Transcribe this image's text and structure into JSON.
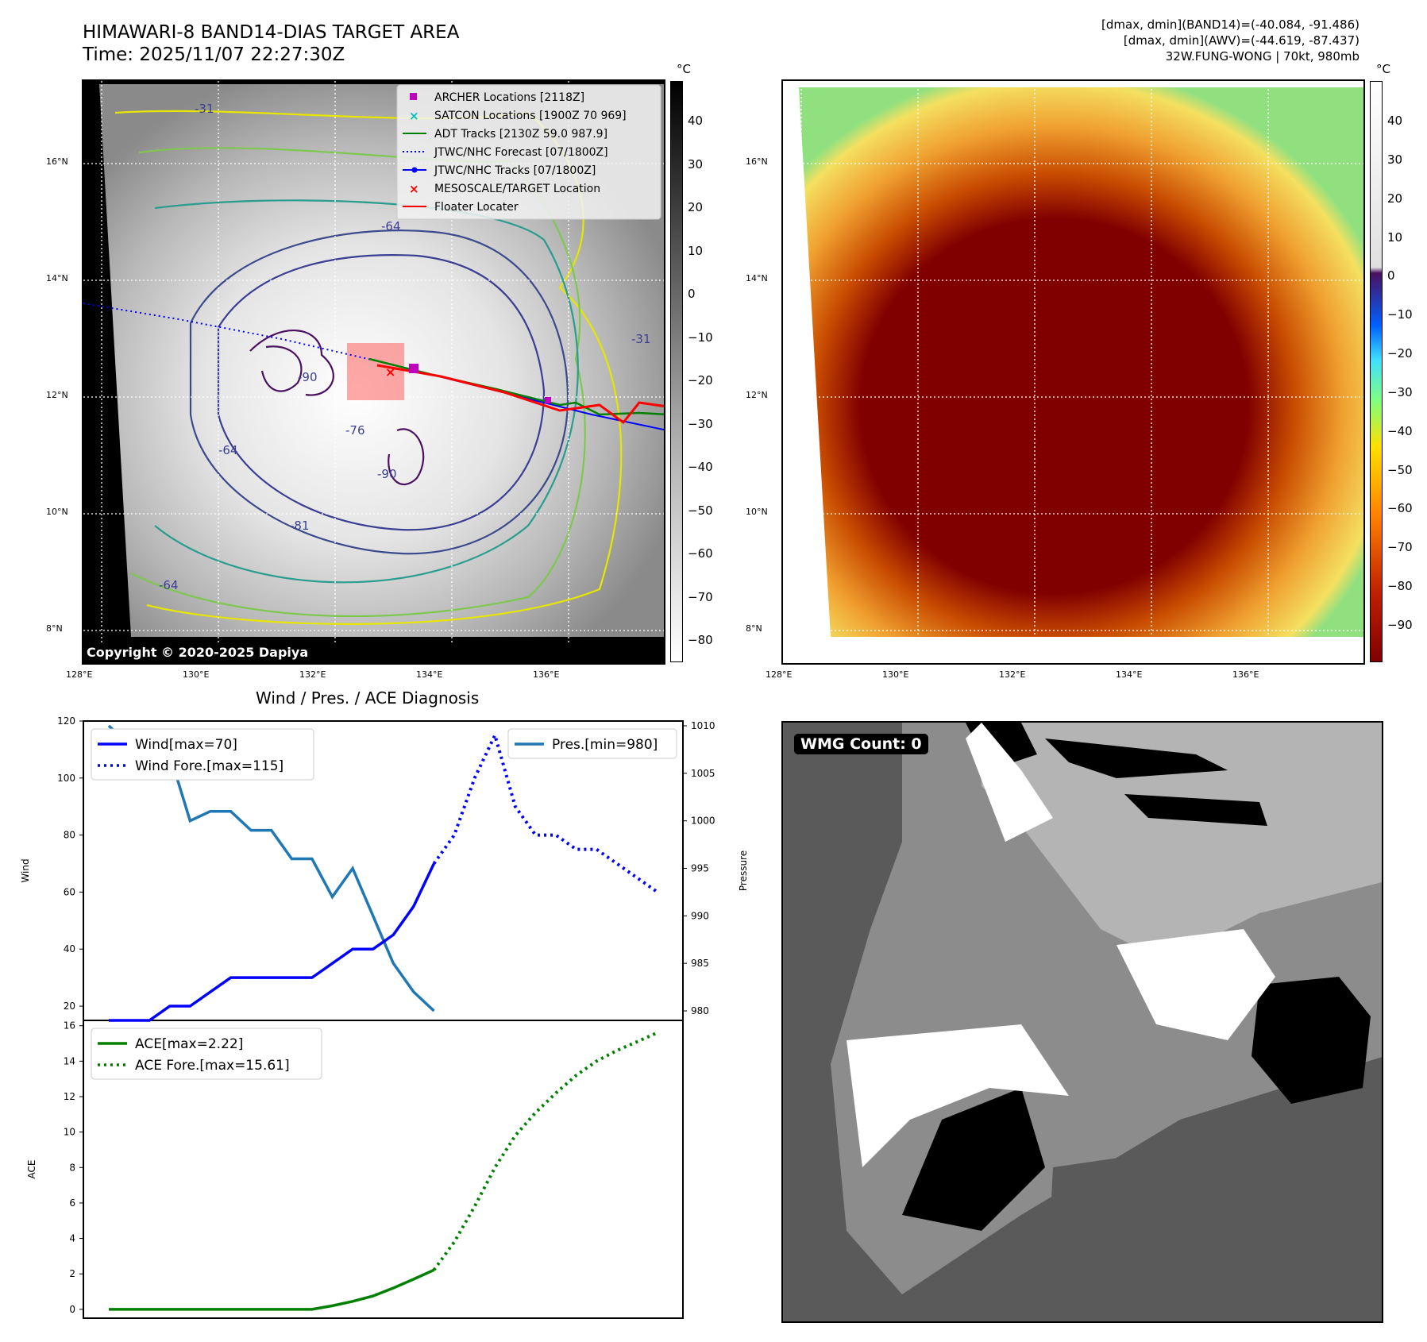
{
  "header": {
    "title": "HIMAWARI-8 BAND14-DIAS TARGET AREA",
    "time": "Time: 2025/11/07 22:27:30Z",
    "info_line1": "[dmax, dmin](BAND14)=(-40.084, -91.486)",
    "info_line2": "[dmax, dmin](AWV)=(-44.619, -87.437)",
    "info_line3": "32W.FUNG-WONG | 70kt, 980mb"
  },
  "map": {
    "lat_labels": [
      "16°N",
      "14°N",
      "12°N",
      "10°N",
      "8°N"
    ],
    "lon_labels": [
      "128°E",
      "130°E",
      "132°E",
      "134°E",
      "136°E"
    ],
    "copyright": "Copyright © 2020-2025 Dapiya",
    "contour_labels": [
      "-90",
      "-90",
      "-81",
      "-76",
      "-64",
      "-64",
      "-64",
      "-31",
      "-31"
    ],
    "legend": [
      {
        "label": "ARCHER Locations [2118Z]",
        "color": "#bf00bf",
        "marker": "square"
      },
      {
        "label": "SATCON Locations [1900Z 70 969]",
        "color": "#00bfbf",
        "marker": "x"
      },
      {
        "label": "ADT Tracks [2130Z 59.0 987.9]",
        "color": "#008000",
        "marker": "line"
      },
      {
        "label": "JTWC/NHC Forecast [07/1800Z]",
        "color": "#0000ff",
        "marker": "dotted"
      },
      {
        "label": "JTWC/NHC Tracks [07/1800Z]",
        "color": "#0000ff",
        "marker": "line-dot"
      },
      {
        "label": "MESOSCALE/TARGET Location",
        "color": "#ff0000",
        "marker": "x"
      },
      {
        "label": "Floater Locater",
        "color": "#ff0000",
        "marker": "line"
      }
    ]
  },
  "colorbar_gray": {
    "unit": "°C",
    "ticks": [
      "40",
      "30",
      "20",
      "10",
      "0",
      "−10",
      "−20",
      "−30",
      "−40",
      "−50",
      "−60",
      "−70",
      "−80"
    ]
  },
  "colorbar_color": {
    "unit": "°C",
    "ticks": [
      "40",
      "30",
      "20",
      "10",
      "0",
      "−10",
      "−20",
      "−30",
      "−40",
      "−50",
      "−60",
      "−70",
      "−80",
      "−90"
    ]
  },
  "chart_data": [
    {
      "type": "line",
      "title": "Wind / Pres. / ACE Diagnosis",
      "ylabel": "Wind",
      "ylabel_right": "Pressure",
      "ylim": [
        15,
        120
      ],
      "ylim_right": [
        979,
        1010.5
      ],
      "x_index_range": [
        0,
        27
      ],
      "yticks": [
        20,
        40,
        60,
        80,
        100,
        120
      ],
      "yticks_right": [
        980,
        985,
        990,
        995,
        1000,
        1005,
        1010
      ],
      "series": [
        {
          "name": "Wind[max=70]",
          "style": "solid",
          "color": "#0000ff",
          "x": [
            0,
            1,
            2,
            3,
            4,
            5,
            6,
            7,
            8,
            9,
            10,
            11,
            12,
            13,
            14,
            15,
            16
          ],
          "values": [
            15,
            15,
            15,
            20,
            20,
            25,
            30,
            30,
            30,
            30,
            30,
            35,
            40,
            40,
            45,
            55,
            70
          ]
        },
        {
          "name": "Wind Fore.[max=115]",
          "style": "dotted",
          "color": "#0000ff",
          "x": [
            16,
            17,
            18,
            19,
            20,
            21,
            22,
            23,
            24,
            25,
            26,
            27
          ],
          "values": [
            70,
            80,
            100,
            115,
            90,
            80,
            80,
            75,
            75,
            70,
            65,
            60
          ]
        },
        {
          "name": "Pres.[min=980]",
          "style": "solid",
          "color": "#1f77b4",
          "axis": "right",
          "x": [
            0,
            1,
            2,
            3,
            4,
            5,
            6,
            7,
            8,
            9,
            10,
            11,
            12,
            13,
            14,
            15,
            16
          ],
          "values": [
            1010,
            1008,
            1008,
            1007,
            1000,
            1001,
            1001,
            999,
            999,
            996,
            996,
            992,
            995,
            990,
            985,
            982,
            980
          ]
        }
      ],
      "legend_left": [
        "Wind[max=70]",
        "Wind Fore.[max=115]"
      ],
      "legend_right": [
        "Pres.[min=980]"
      ]
    },
    {
      "type": "line",
      "ylabel": "ACE",
      "ylim": [
        -0.5,
        16.3
      ],
      "x_index_range": [
        0,
        27
      ],
      "yticks": [
        0,
        2,
        4,
        6,
        8,
        10,
        12,
        14,
        16
      ],
      "series": [
        {
          "name": "ACE[max=2.22]",
          "style": "solid",
          "color": "#008000",
          "x": [
            0,
            2,
            4,
            6,
            8,
            10,
            11,
            12,
            13,
            14,
            15,
            16
          ],
          "values": [
            0,
            0,
            0,
            0,
            0,
            0,
            0.2,
            0.45,
            0.75,
            1.2,
            1.7,
            2.22
          ]
        },
        {
          "name": "ACE Fore.[max=15.61]",
          "style": "dotted",
          "color": "#008000",
          "x": [
            16,
            17,
            18,
            19,
            20,
            21,
            22,
            23,
            24,
            25,
            26,
            27
          ],
          "values": [
            2.22,
            3.8,
            5.8,
            8.0,
            9.8,
            11.1,
            12.2,
            13.2,
            14.0,
            14.6,
            15.1,
            15.61
          ]
        }
      ],
      "legend": [
        "ACE[max=2.22]",
        "ACE Fore.[max=15.61]"
      ]
    }
  ],
  "wmg": {
    "label": "WMG Count: 0"
  }
}
